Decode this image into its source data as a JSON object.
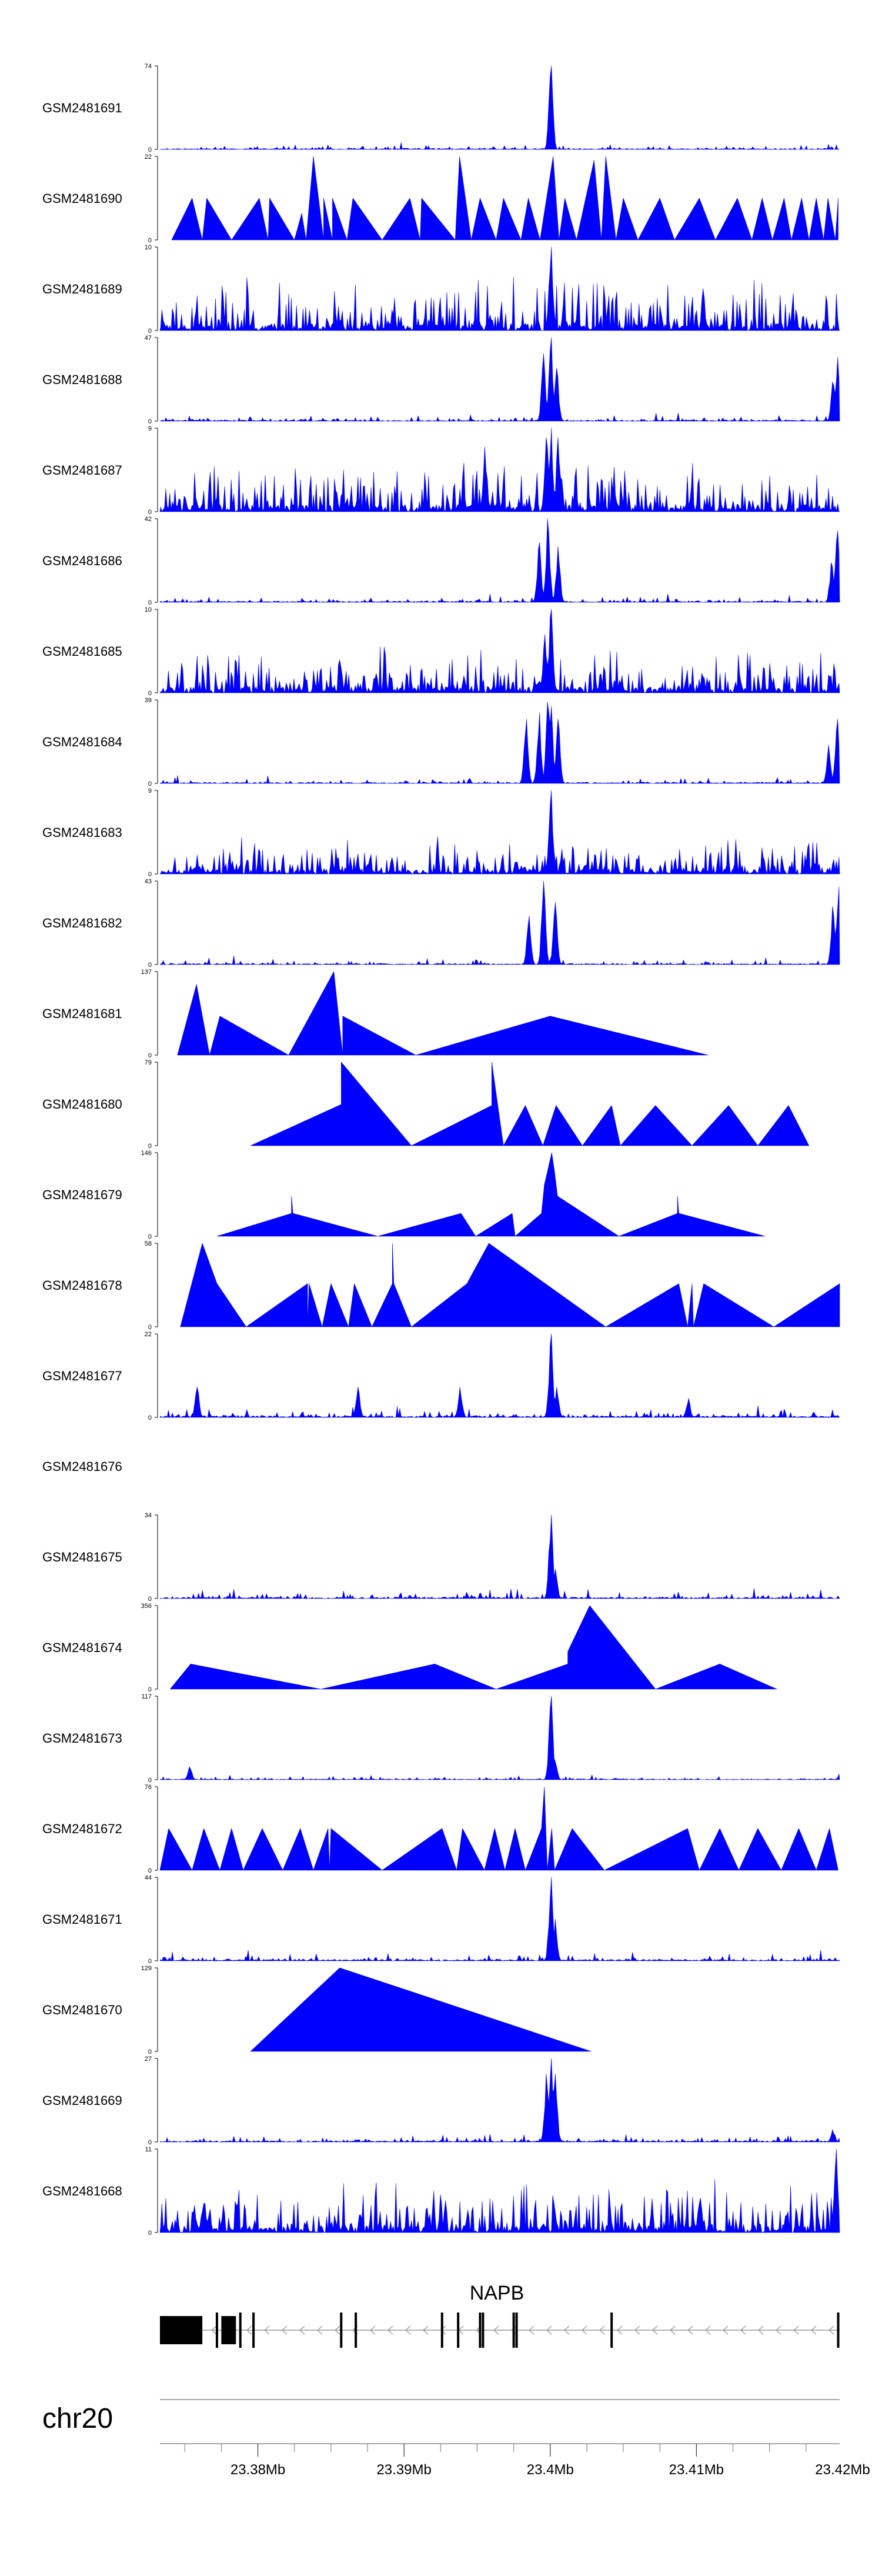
{
  "chart_data": {
    "type": "area",
    "title": "",
    "xlabel": "",
    "ylabel": "",
    "xlim_mb": [
      23.3733,
      23.4198
    ],
    "peak_center_mb": 23.4,
    "series_color": "#0000ff",
    "tracks": [
      {
        "name": "GSM2481691",
        "ymax": 74,
        "ymin": 0,
        "mode": "sparse",
        "peaks": [
          [
            23.4,
            74
          ]
        ],
        "noise": 0.04,
        "seed": 11
      },
      {
        "name": "GSM2481690",
        "ymax": 22,
        "ymin": 0,
        "mode": "tri",
        "points": [
          [
            23.3741,
            0
          ],
          [
            23.3755,
            11
          ],
          [
            23.3762,
            0
          ],
          [
            23.3765,
            11
          ],
          [
            23.3782,
            0
          ],
          [
            23.3801,
            11
          ],
          [
            23.3807,
            0
          ],
          [
            23.3808,
            11
          ],
          [
            23.3825,
            0
          ],
          [
            23.383,
            7
          ],
          [
            23.3833,
            0
          ],
          [
            23.3838,
            22
          ],
          [
            23.3845,
            0
          ],
          [
            23.3845,
            11
          ],
          [
            23.3851,
            0
          ],
          [
            23.3851,
            11
          ],
          [
            23.3861,
            0
          ],
          [
            23.3865,
            11
          ],
          [
            23.3885,
            0
          ],
          [
            23.3904,
            11
          ],
          [
            23.3911,
            0
          ],
          [
            23.3912,
            11
          ],
          [
            23.3935,
            0
          ],
          [
            23.3938,
            22
          ],
          [
            23.3946,
            0
          ],
          [
            23.3952,
            11
          ],
          [
            23.3963,
            0
          ],
          [
            23.3968,
            11
          ],
          [
            23.398,
            0
          ],
          [
            23.3985,
            11
          ],
          [
            23.3993,
            0
          ],
          [
            23.4002,
            22
          ],
          [
            23.4006,
            0
          ],
          [
            23.401,
            11
          ],
          [
            23.4018,
            0
          ],
          [
            23.403,
            21
          ],
          [
            23.4035,
            0
          ],
          [
            23.4038,
            22
          ],
          [
            23.4045,
            0
          ],
          [
            23.405,
            11
          ],
          [
            23.406,
            0
          ],
          [
            23.4075,
            11
          ],
          [
            23.4085,
            0
          ],
          [
            23.4102,
            11
          ],
          [
            23.4113,
            0
          ],
          [
            23.4128,
            11
          ],
          [
            23.4138,
            0
          ],
          [
            23.4145,
            11
          ],
          [
            23.4152,
            0
          ],
          [
            23.416,
            11
          ],
          [
            23.4165,
            0
          ],
          [
            23.4172,
            11
          ],
          [
            23.4177,
            0
          ],
          [
            23.4182,
            11
          ],
          [
            23.4187,
            0
          ],
          [
            23.419,
            11
          ],
          [
            23.4195,
            0
          ],
          [
            23.4197,
            11
          ]
        ]
      },
      {
        "name": "GSM2481689",
        "ymax": 10,
        "ymin": 0,
        "mode": "dense",
        "peaks": [
          [
            23.4,
            10
          ]
        ],
        "noise": 0.35,
        "seed": 23
      },
      {
        "name": "GSM2481688",
        "ymax": 47,
        "ymin": 0,
        "mode": "sparse",
        "peaks": [
          [
            23.3995,
            38
          ],
          [
            23.4,
            47
          ],
          [
            23.4004,
            30
          ],
          [
            23.4193,
            22
          ],
          [
            23.4196,
            36
          ]
        ],
        "noise": 0.05,
        "seed": 31
      },
      {
        "name": "GSM2481687",
        "ymax": 9,
        "ymin": 0,
        "mode": "dense",
        "peaks": [
          [
            23.3955,
            7
          ],
          [
            23.3997,
            8
          ],
          [
            23.4,
            9
          ],
          [
            23.4005,
            8
          ]
        ],
        "noise": 0.35,
        "seed": 37
      },
      {
        "name": "GSM2481686",
        "ymax": 42,
        "ymin": 0,
        "mode": "sparse",
        "peaks": [
          [
            23.3992,
            30
          ],
          [
            23.3998,
            42
          ],
          [
            23.4005,
            28
          ],
          [
            23.4192,
            20
          ],
          [
            23.4196,
            36
          ]
        ],
        "noise": 0.05,
        "seed": 41
      },
      {
        "name": "GSM2481685",
        "ymax": 10,
        "ymin": 0,
        "mode": "dense",
        "peaks": [
          [
            23.3996,
            7
          ],
          [
            23.4,
            10
          ]
        ],
        "noise": 0.3,
        "seed": 43
      },
      {
        "name": "GSM2481684",
        "ymax": 39,
        "ymin": 0,
        "mode": "sparse",
        "peaks": [
          [
            23.3983,
            30
          ],
          [
            23.3992,
            33
          ],
          [
            23.3998,
            38
          ],
          [
            23.4,
            36
          ],
          [
            23.4005,
            30
          ],
          [
            23.419,
            18
          ],
          [
            23.4196,
            30
          ]
        ],
        "noise": 0.05,
        "seed": 47
      },
      {
        "name": "GSM2481683",
        "ymax": 9,
        "ymin": 0,
        "mode": "dense",
        "peaks": [
          [
            23.4,
            9
          ]
        ],
        "noise": 0.25,
        "seed": 53
      },
      {
        "name": "GSM2481682",
        "ymax": 43,
        "ymin": 0,
        "mode": "sparse",
        "peaks": [
          [
            23.3985,
            25
          ],
          [
            23.3995,
            43
          ],
          [
            23.4003,
            32
          ],
          [
            23.4193,
            30
          ],
          [
            23.4197,
            40
          ]
        ],
        "noise": 0.05,
        "seed": 59
      },
      {
        "name": "GSM2481681",
        "ymax": 137,
        "ymin": 0,
        "mode": "tri",
        "points": [
          [
            23.3745,
            0
          ],
          [
            23.3758,
            116
          ],
          [
            23.3767,
            0
          ],
          [
            23.3774,
            64
          ],
          [
            23.3821,
            0
          ],
          [
            23.3852,
            137
          ],
          [
            23.3858,
            0
          ],
          [
            23.3858,
            64
          ],
          [
            23.3908,
            0
          ],
          [
            23.4,
            64
          ],
          [
            23.4,
            40
          ],
          [
            23.4,
            64
          ],
          [
            23.4108,
            0
          ]
        ]
      },
      {
        "name": "GSM2481680",
        "ymax": 79,
        "ymin": 0,
        "mode": "tri",
        "points": [
          [
            23.3795,
            0
          ],
          [
            23.3857,
            39
          ],
          [
            23.3857,
            79
          ],
          [
            23.3905,
            0
          ],
          [
            23.396,
            38
          ],
          [
            23.396,
            79
          ],
          [
            23.3968,
            0
          ],
          [
            23.3983,
            38
          ],
          [
            23.3995,
            0
          ],
          [
            23.4004,
            38
          ],
          [
            23.4022,
            0
          ],
          [
            23.4042,
            38
          ],
          [
            23.4048,
            0
          ],
          [
            23.4072,
            38
          ],
          [
            23.4097,
            0
          ],
          [
            23.4122,
            38
          ],
          [
            23.4142,
            0
          ],
          [
            23.4163,
            38
          ],
          [
            23.4177,
            0
          ]
        ]
      },
      {
        "name": "GSM2481679",
        "ymax": 146,
        "ymin": 0,
        "mode": "tri",
        "points": [
          [
            23.3772,
            0
          ],
          [
            23.3823,
            40
          ],
          [
            23.3823,
            70
          ],
          [
            23.3824,
            40
          ],
          [
            23.3882,
            0
          ],
          [
            23.3939,
            40
          ],
          [
            23.3949,
            0
          ],
          [
            23.3974,
            40
          ],
          [
            23.3976,
            0
          ],
          [
            23.3994,
            40
          ],
          [
            23.3996,
            90
          ],
          [
            23.3998,
            112
          ],
          [
            23.4001,
            146
          ],
          [
            23.4003,
            112
          ],
          [
            23.4005,
            70
          ],
          [
            23.4047,
            0
          ],
          [
            23.4087,
            40
          ],
          [
            23.4087,
            70
          ],
          [
            23.4088,
            40
          ],
          [
            23.4147,
            0
          ]
        ]
      },
      {
        "name": "GSM2481678",
        "ymax": 58,
        "ymin": 0,
        "mode": "tri",
        "points": [
          [
            23.3747,
            0
          ],
          [
            23.3762,
            58
          ],
          [
            23.3772,
            30
          ],
          [
            23.3792,
            0
          ],
          [
            23.3834,
            30
          ],
          [
            23.3834,
            0
          ],
          [
            23.3835,
            30
          ],
          [
            23.3844,
            0
          ],
          [
            23.385,
            30
          ],
          [
            23.3862,
            0
          ],
          [
            23.3866,
            30
          ],
          [
            23.3878,
            0
          ],
          [
            23.3892,
            30
          ],
          [
            23.3892,
            58
          ],
          [
            23.3893,
            30
          ],
          [
            23.3905,
            0
          ],
          [
            23.3943,
            30
          ],
          [
            23.3958,
            58
          ],
          [
            23.4038,
            0
          ],
          [
            23.4088,
            30
          ],
          [
            23.4094,
            0
          ],
          [
            23.4097,
            30
          ],
          [
            23.4098,
            0
          ],
          [
            23.4105,
            30
          ],
          [
            23.4153,
            0
          ],
          [
            23.4198,
            30
          ]
        ]
      },
      {
        "name": "GSM2481677",
        "ymax": 22,
        "ymin": 0,
        "mode": "sparse",
        "peaks": [
          [
            23.3758,
            8
          ],
          [
            23.3868,
            8
          ],
          [
            23.3938,
            8
          ],
          [
            23.4,
            22
          ],
          [
            23.4004,
            8
          ],
          [
            23.4094,
            5
          ]
        ],
        "noise": 0.08,
        "seed": 61
      },
      {
        "name": "GSM2481676",
        "ymax": null,
        "ymin": null,
        "mode": "empty"
      },
      {
        "name": "GSM2481675",
        "ymax": 34,
        "ymin": 0,
        "mode": "sparse",
        "peaks": [
          [
            23.4,
            34
          ],
          [
            23.4003,
            12
          ]
        ],
        "noise": 0.07,
        "seed": 67
      },
      {
        "name": "GSM2481674",
        "ymax": 356,
        "ymin": 0,
        "mode": "tri",
        "points": [
          [
            23.374,
            0
          ],
          [
            23.3754,
            107
          ],
          [
            23.3843,
            0
          ],
          [
            23.3921,
            107
          ],
          [
            23.3963,
            0
          ],
          [
            23.4012,
            107
          ],
          [
            23.4012,
            160
          ],
          [
            23.4027,
            356
          ],
          [
            23.4072,
            0
          ],
          [
            23.4116,
            107
          ],
          [
            23.4155,
            0
          ]
        ]
      },
      {
        "name": "GSM2481673",
        "ymax": 117,
        "ymin": 0,
        "mode": "sparse",
        "peaks": [
          [
            23.3753,
            18
          ],
          [
            23.4,
            117
          ],
          [
            23.4003,
            25
          ],
          [
            23.4198,
            8
          ]
        ],
        "noise": 0.03,
        "seed": 71
      },
      {
        "name": "GSM2481672",
        "ymax": 76,
        "ymin": 0,
        "mode": "tri",
        "points": [
          [
            23.3733,
            0
          ],
          [
            23.3739,
            38
          ],
          [
            23.3755,
            0
          ],
          [
            23.3763,
            38
          ],
          [
            23.3774,
            0
          ],
          [
            23.3782,
            38
          ],
          [
            23.379,
            0
          ],
          [
            23.3803,
            38
          ],
          [
            23.3817,
            0
          ],
          [
            23.3829,
            38
          ],
          [
            23.3838,
            0
          ],
          [
            23.3848,
            38
          ],
          [
            23.3849,
            0
          ],
          [
            23.385,
            38
          ],
          [
            23.3885,
            0
          ],
          [
            23.3926,
            38
          ],
          [
            23.3936,
            0
          ],
          [
            23.394,
            38
          ],
          [
            23.3955,
            0
          ],
          [
            23.3962,
            38
          ],
          [
            23.3969,
            0
          ],
          [
            23.3976,
            38
          ],
          [
            23.3983,
            0
          ],
          [
            23.3994,
            38
          ],
          [
            23.3996,
            76
          ],
          [
            23.3998,
            0
          ],
          [
            23.4001,
            38
          ],
          [
            23.4003,
            0
          ],
          [
            23.4015,
            38
          ],
          [
            23.4037,
            0
          ],
          [
            23.4094,
            38
          ],
          [
            23.4102,
            0
          ],
          [
            23.4116,
            38
          ],
          [
            23.4129,
            0
          ],
          [
            23.4142,
            38
          ],
          [
            23.4158,
            0
          ],
          [
            23.417,
            38
          ],
          [
            23.4182,
            0
          ],
          [
            23.4191,
            38
          ],
          [
            23.4197,
            0
          ]
        ]
      },
      {
        "name": "GSM2481671",
        "ymax": 44,
        "ymin": 0,
        "mode": "sparse",
        "peaks": [
          [
            23.4,
            44
          ],
          [
            23.4003,
            22
          ]
        ],
        "noise": 0.07,
        "seed": 73
      },
      {
        "name": "GSM2481670",
        "ymax": 129,
        "ymin": 0,
        "mode": "tri",
        "points": [
          [
            23.3795,
            0
          ],
          [
            23.3856,
            129
          ],
          [
            23.4028,
            0
          ]
        ]
      },
      {
        "name": "GSM2481669",
        "ymax": 27,
        "ymin": 0,
        "mode": "sparse",
        "peaks": [
          [
            23.3997,
            22
          ],
          [
            23.4,
            27
          ],
          [
            23.4003,
            22
          ],
          [
            23.4193,
            4
          ]
        ],
        "noise": 0.06,
        "seed": 79
      },
      {
        "name": "GSM2481668",
        "ymax": 11,
        "ymin": 0,
        "mode": "dense",
        "peaks": [
          [
            23.4195,
            11
          ]
        ],
        "noise": 0.35,
        "seed": 83
      }
    ],
    "gene_track": {
      "gene_name": "NAPB",
      "strand": "-",
      "start_mb": 23.3733,
      "end_mb": 23.4198,
      "utr_blocks_mb": [
        [
          23.3733,
          23.3762
        ],
        [
          23.3775,
          23.3785
        ]
      ],
      "exons_mb": [
        23.3772,
        23.3788,
        23.3797,
        23.3857,
        23.3867,
        23.3926,
        23.3937,
        23.3952,
        23.3954,
        23.3975,
        23.3977,
        23.4042,
        23.4197
      ]
    },
    "chromosome": "chr20",
    "axis": {
      "tick_labels": [
        "23.38Mb",
        "23.39Mb",
        "23.4Mb",
        "23.41Mb",
        "23.42Mb"
      ],
      "tick_values_mb": [
        23.38,
        23.39,
        23.4,
        23.41,
        23.42
      ],
      "minor_tick_step_mb": 0.0025
    }
  }
}
